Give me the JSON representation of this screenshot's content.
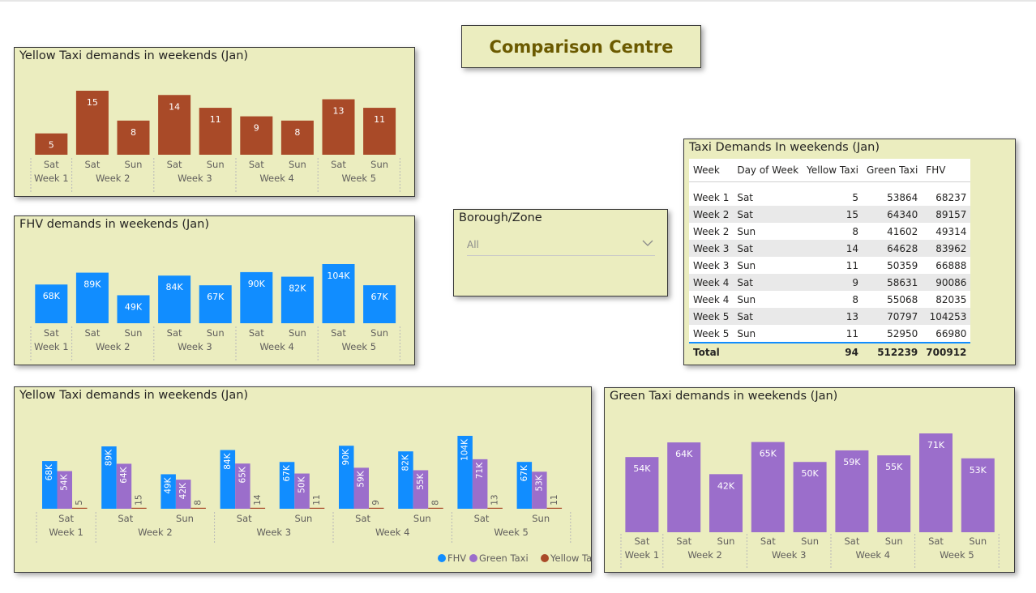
{
  "page_title": "Comparison Centre",
  "colors": {
    "yellow_taxi": "#a94a28",
    "fhv": "#118dff",
    "green_taxi": "#9b6ecb",
    "panel_bg": "#ebedbf"
  },
  "slicer": {
    "label": "Borough/Zone",
    "value": "All",
    "icon": "chevron-down-icon"
  },
  "categories": [
    {
      "day": "Sat",
      "week": "Week 1"
    },
    {
      "day": "Sat",
      "week": "Week 2"
    },
    {
      "day": "Sun",
      "week": "Week 2"
    },
    {
      "day": "Sat",
      "week": "Week 3"
    },
    {
      "day": "Sun",
      "week": "Week 3"
    },
    {
      "day": "Sat",
      "week": "Week 4"
    },
    {
      "day": "Sun",
      "week": "Week 4"
    },
    {
      "day": "Sat",
      "week": "Week 5"
    },
    {
      "day": "Sun",
      "week": "Week 5"
    }
  ],
  "table": {
    "title": "Taxi Demands In weekends (Jan)",
    "columns": [
      "Week",
      "Day of Week",
      "Yellow Taxi",
      "Green Taxi",
      "FHV"
    ],
    "rows": [
      [
        "Week 1",
        "Sat",
        "5",
        "53864",
        "68237"
      ],
      [
        "Week 2",
        "Sat",
        "15",
        "64340",
        "89157"
      ],
      [
        "Week 2",
        "Sun",
        "8",
        "41602",
        "49314"
      ],
      [
        "Week 3",
        "Sat",
        "14",
        "64628",
        "83962"
      ],
      [
        "Week 3",
        "Sun",
        "11",
        "50359",
        "66888"
      ],
      [
        "Week 4",
        "Sat",
        "9",
        "58631",
        "90086"
      ],
      [
        "Week 4",
        "Sun",
        "8",
        "55068",
        "82035"
      ],
      [
        "Week 5",
        "Sat",
        "13",
        "70797",
        "104253"
      ],
      [
        "Week 5",
        "Sun",
        "11",
        "52950",
        "66980"
      ]
    ],
    "total": [
      "Total",
      "",
      "94",
      "512239",
      "700912"
    ]
  },
  "chart_data": [
    {
      "id": "yellow",
      "type": "bar",
      "title": "Yellow Taxi demands in weekends (Jan)",
      "values": [
        5,
        15,
        8,
        14,
        11,
        9,
        8,
        13,
        11
      ],
      "labels": [
        "5",
        "15",
        "8",
        "14",
        "11",
        "9",
        "8",
        "13",
        "11"
      ],
      "color": "#a94a28"
    },
    {
      "id": "fhv",
      "type": "bar",
      "title": "FHV demands in weekends (Jan)",
      "values": [
        68237,
        89157,
        49314,
        83962,
        66888,
        90086,
        82035,
        104253,
        66980
      ],
      "labels": [
        "68K",
        "89K",
        "49K",
        "84K",
        "67K",
        "90K",
        "82K",
        "104K",
        "67K"
      ],
      "color": "#118dff"
    },
    {
      "id": "combined",
      "type": "bar",
      "title": "Yellow Taxi demands in weekends (Jan)",
      "legend_position": "bottom-right",
      "series": [
        {
          "name": "FHV",
          "color": "#118dff",
          "values": [
            68237,
            89157,
            49314,
            83962,
            66888,
            90086,
            82035,
            104253,
            66980
          ],
          "labels": [
            "68K",
            "89K",
            "49K",
            "84K",
            "67K",
            "90K",
            "82K",
            "104K",
            "67K"
          ]
        },
        {
          "name": "Green Taxi",
          "color": "#9b6ecb",
          "values": [
            53864,
            64340,
            41602,
            64628,
            50359,
            58631,
            55068,
            70797,
            52950
          ],
          "labels": [
            "54K",
            "64K",
            "42K",
            "65K",
            "50K",
            "59K",
            "55K",
            "71K",
            "53K"
          ]
        },
        {
          "name": "Yellow Taxi",
          "color": "#a94a28",
          "values": [
            5,
            15,
            8,
            14,
            11,
            9,
            8,
            13,
            11
          ],
          "labels": [
            "5",
            "15",
            "8",
            "14",
            "11",
            "9",
            "8",
            "13",
            "11"
          ]
        }
      ]
    },
    {
      "id": "green",
      "type": "bar",
      "title": "Green Taxi demands in weekends (Jan)",
      "values": [
        53864,
        64340,
        41602,
        64628,
        50359,
        58631,
        55068,
        70797,
        52950
      ],
      "labels": [
        "54K",
        "64K",
        "42K",
        "65K",
        "50K",
        "59K",
        "55K",
        "71K",
        "53K"
      ],
      "color": "#9b6ecb"
    }
  ]
}
